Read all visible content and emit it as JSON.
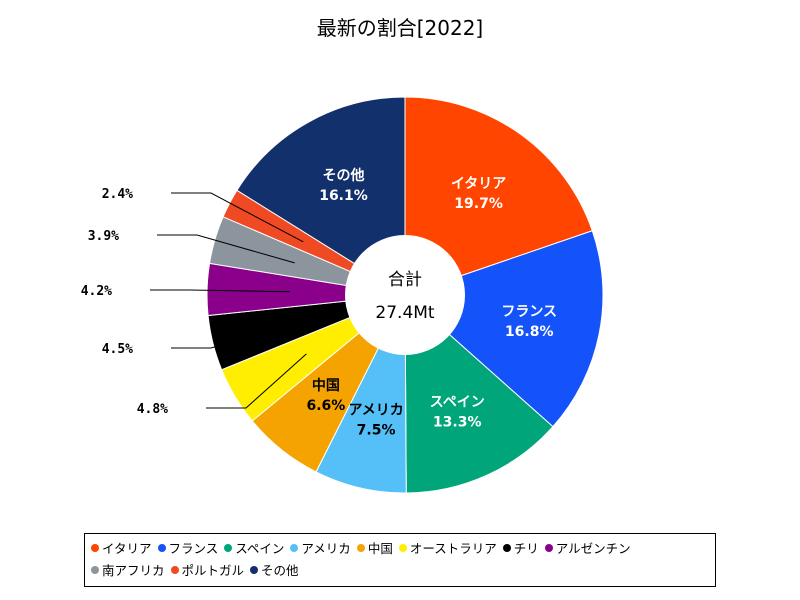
{
  "chart_data": {
    "type": "pie",
    "title": "最新の割合[2022]",
    "center_label": "合計",
    "center_value": "27.4Mt",
    "slices": [
      {
        "name": "イタリア",
        "value": 19.7,
        "label": "19.7%",
        "color": "#ff4500"
      },
      {
        "name": "フランス",
        "value": 16.8,
        "label": "16.8%",
        "color": "#1452fa"
      },
      {
        "name": "スペイン",
        "value": 13.3,
        "label": "13.3%",
        "color": "#00a67a"
      },
      {
        "name": "アメリカ",
        "value": 7.5,
        "label": "7.5%",
        "color": "#55c0f8"
      },
      {
        "name": "中国",
        "value": 6.6,
        "label": "6.6%",
        "color": "#f5a300"
      },
      {
        "name": "オーストラリア",
        "value": 4.8,
        "label": "4.8%",
        "color": "#ffee00"
      },
      {
        "name": "チリ",
        "value": 4.5,
        "label": "4.5%",
        "color": "#000000"
      },
      {
        "name": "アルゼンチン",
        "value": 4.2,
        "label": "4.2%",
        "color": "#8b008b"
      },
      {
        "name": "南アフリカ",
        "value": 3.9,
        "label": "3.9%",
        "color": "#8c959e"
      },
      {
        "name": "ポルトガル",
        "value": 2.4,
        "label": "2.4%",
        "color": "#ef4a23"
      },
      {
        "name": "その他",
        "value": 16.1,
        "label": "16.1%",
        "color": "#12306c"
      }
    ],
    "legend_position": "bottom"
  }
}
